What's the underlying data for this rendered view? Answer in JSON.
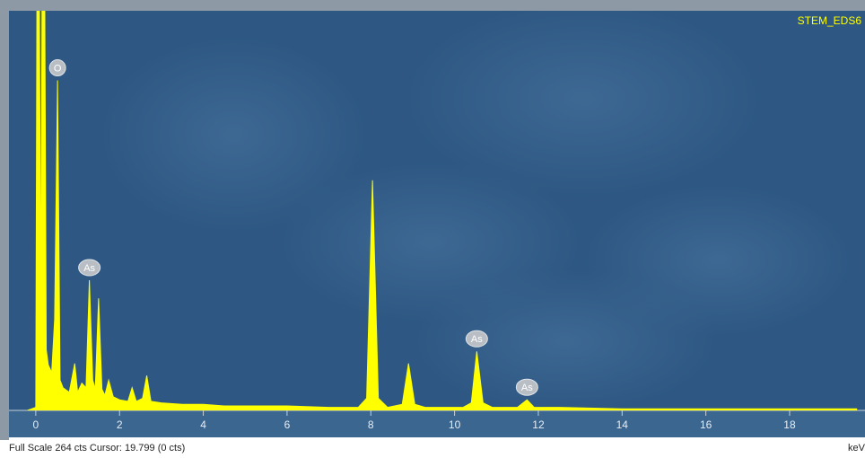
{
  "chart_data": {
    "type": "area",
    "title": "STEM_EDS6",
    "footer": "Full Scale 264 cts Cursor: 19.799  (0 cts)",
    "x_label": "keV",
    "color": "#ffff00",
    "x": [
      -0.2,
      0.0,
      0.05,
      0.12,
      0.18,
      0.25,
      0.3,
      0.38,
      0.45,
      0.52,
      0.58,
      0.65,
      0.8,
      0.93,
      1.0,
      1.1,
      1.2,
      1.28,
      1.36,
      1.42,
      1.5,
      1.58,
      1.65,
      1.74,
      1.85,
      2.0,
      2.2,
      2.3,
      2.4,
      2.55,
      2.65,
      2.75,
      3.0,
      3.5,
      4.0,
      4.5,
      5.0,
      6.0,
      7.0,
      7.7,
      7.9,
      8.04,
      8.18,
      8.4,
      8.75,
      8.9,
      9.05,
      9.3,
      10.2,
      10.4,
      10.53,
      10.68,
      10.9,
      11.5,
      11.73,
      11.9,
      12.5,
      14,
      16,
      18,
      19.6
    ],
    "values": [
      0,
      2,
      500,
      60,
      500,
      40,
      30,
      25,
      60,
      218,
      20,
      15,
      12,
      31,
      12,
      18,
      15,
      86,
      20,
      14,
      74,
      14,
      10,
      20,
      9,
      7,
      6,
      15,
      6,
      8,
      23,
      6,
      5,
      4,
      4,
      3,
      3,
      3,
      2,
      2,
      8,
      152,
      8,
      2,
      4,
      31,
      4,
      2,
      2,
      5,
      39,
      5,
      2,
      2,
      7,
      2,
      2,
      1,
      1,
      1,
      1
    ],
    "xlim": [
      -0.64,
      19.8
    ],
    "ylim": [
      0,
      264
    ],
    "xticks": [
      0,
      2,
      4,
      6,
      8,
      10,
      12,
      14,
      16,
      18
    ],
    "annotations": [
      {
        "text": "O",
        "x": 0.52,
        "y": 218
      },
      {
        "text": "As",
        "x": 1.28,
        "y": 86
      },
      {
        "text": "As",
        "x": 10.53,
        "y": 39
      },
      {
        "text": "As",
        "x": 11.73,
        "y": 7
      }
    ]
  }
}
